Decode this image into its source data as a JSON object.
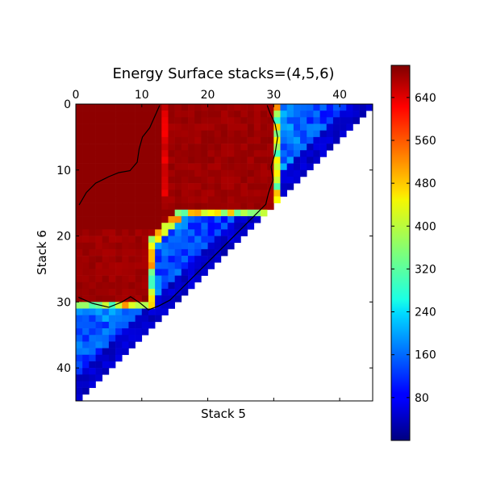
{
  "chart_data": {
    "type": "heatmap",
    "title": "Energy Surface stacks=(4,5,6)",
    "xlabel": "Stack 5",
    "ylabel": "Stack 6",
    "grid_size": 45,
    "xlim": [
      0,
      45
    ],
    "ylim": [
      45,
      0
    ],
    "x_ticks": [
      0,
      10,
      20,
      30,
      40
    ],
    "y_ticks": [
      0,
      10,
      20,
      30,
      40
    ],
    "x_tick_position": "top",
    "colormap": "jet",
    "color_range": [
      0,
      700
    ],
    "colorbar_ticks": [
      80,
      160,
      240,
      320,
      400,
      480,
      560,
      640
    ],
    "valid_region": "lower-left triangle (x + y < 45)",
    "high_energy_region": "x + y <= 30 and x < 30 and y < 30, plus upper lobe x 11-30 / y 0-15 and lower lobe x 0-12 / y 10-30",
    "high_energy_value": 680,
    "low_energy_value": 80,
    "contour_level": 400
  }
}
